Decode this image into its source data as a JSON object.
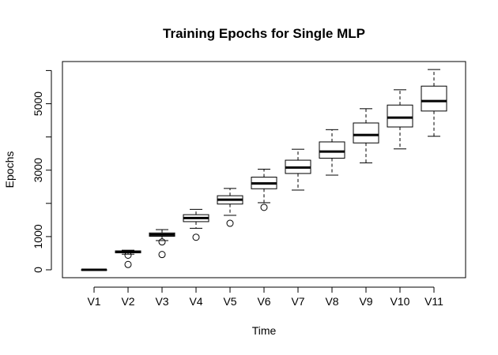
{
  "chart_data": {
    "type": "boxplot",
    "title": "Training Epochs for Single MLP",
    "xlabel": "Time",
    "ylabel": "Epochs",
    "categories": [
      "V1",
      "V2",
      "V3",
      "V4",
      "V5",
      "V6",
      "V7",
      "V8",
      "V9",
      "V10",
      "V11"
    ],
    "y_ticks": [
      0,
      1000,
      3000,
      5000
    ],
    "y_ticks_unlabeled": [
      2000,
      4000,
      6000
    ],
    "ylim": [
      -150,
      6250
    ],
    "grid": false,
    "legend": "none",
    "boxes": [
      {
        "name": "V1",
        "min": 0,
        "q1": 0,
        "median": 0,
        "q3": 0,
        "max": 0,
        "outliers": []
      },
      {
        "name": "V2",
        "min": 470,
        "q1": 510,
        "median": 540,
        "q3": 570,
        "max": 590,
        "outliers": [
          440,
          160
        ]
      },
      {
        "name": "V3",
        "min": 880,
        "q1": 1010,
        "median": 1060,
        "q3": 1110,
        "max": 1210,
        "outliers": [
          840,
          460
        ]
      },
      {
        "name": "V4",
        "min": 1250,
        "q1": 1450,
        "median": 1560,
        "q3": 1660,
        "max": 1820,
        "outliers": [
          980
        ]
      },
      {
        "name": "V5",
        "min": 1640,
        "q1": 1980,
        "median": 2110,
        "q3": 2230,
        "max": 2450,
        "outliers": [
          1400
        ]
      },
      {
        "name": "V6",
        "min": 2020,
        "q1": 2440,
        "median": 2600,
        "q3": 2790,
        "max": 3030,
        "outliers": [
          1880
        ]
      },
      {
        "name": "V7",
        "min": 2400,
        "q1": 2900,
        "median": 3080,
        "q3": 3300,
        "max": 3630,
        "outliers": []
      },
      {
        "name": "V8",
        "min": 2850,
        "q1": 3360,
        "median": 3560,
        "q3": 3850,
        "max": 4220,
        "outliers": []
      },
      {
        "name": "V9",
        "min": 3220,
        "q1": 3820,
        "median": 4060,
        "q3": 4420,
        "max": 4850,
        "outliers": []
      },
      {
        "name": "V10",
        "min": 3640,
        "q1": 4300,
        "median": 4580,
        "q3": 4960,
        "max": 5420,
        "outliers": []
      },
      {
        "name": "V11",
        "min": 4020,
        "q1": 4780,
        "median": 5080,
        "q3": 5530,
        "max": 6030,
        "outliers": []
      }
    ]
  }
}
